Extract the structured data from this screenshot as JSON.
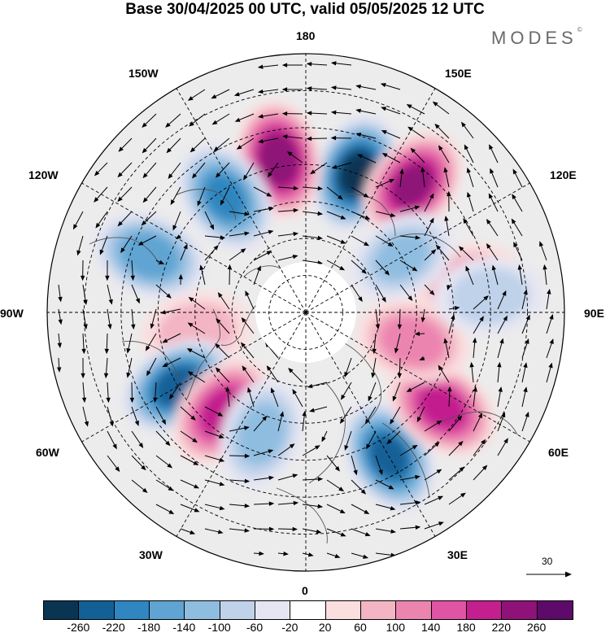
{
  "title": "Base 30/04/2025 00 UTC, valid 05/05/2025 12 UTC",
  "brand": "MODES",
  "brand_mark": "©",
  "longitude_labels": {
    "top": "180",
    "bottom": "0",
    "left": "90W",
    "right": "90E",
    "upper_left": "150W",
    "upper_right": "150E",
    "left_upper": "120W",
    "right_upper": "120E",
    "left_lower": "60W",
    "right_lower": "60E",
    "lower_left": "30W",
    "lower_right": "30E"
  },
  "reference_vector": "30",
  "colorbar": {
    "colors": [
      "#0a3552",
      "#136096",
      "#2f86c0",
      "#5fa4d2",
      "#8fbde0",
      "#bfd2ea",
      "#e6e6f2",
      "#ffffff",
      "#fbdede",
      "#f3b4c3",
      "#ec84b0",
      "#e054a4",
      "#c31f8e",
      "#8e1278",
      "#5e0a6a"
    ],
    "tick_labels": [
      "-260",
      "-220",
      "-180",
      "-140",
      "-100",
      "-60",
      "-20",
      "20",
      "60",
      "100",
      "140",
      "180",
      "220",
      "260"
    ]
  },
  "anomalies": [
    {
      "lon": 160,
      "lat": 50,
      "value": -270
    },
    {
      "lon": -170,
      "lat": 48,
      "value": 250
    },
    {
      "lon": 140,
      "lat": 45,
      "value": 230
    },
    {
      "lon": -145,
      "lat": 52,
      "value": -190
    },
    {
      "lon": 100,
      "lat": 45,
      "value": 110
    },
    {
      "lon": -110,
      "lat": 45,
      "value": -170
    },
    {
      "lon": -80,
      "lat": 60,
      "value": 90
    },
    {
      "lon": -60,
      "lat": 50,
      "value": -240
    },
    {
      "lon": -40,
      "lat": 55,
      "value": 200
    },
    {
      "lon": -20,
      "lat": 55,
      "value": -120
    },
    {
      "lon": 30,
      "lat": 45,
      "value": -230
    },
    {
      "lon": 55,
      "lat": 45,
      "value": 200
    },
    {
      "lon": 75,
      "lat": 60,
      "value": 130
    },
    {
      "lon": 95,
      "lat": 40,
      "value": -90
    },
    {
      "lon": 120,
      "lat": 60,
      "value": -110
    }
  ]
}
